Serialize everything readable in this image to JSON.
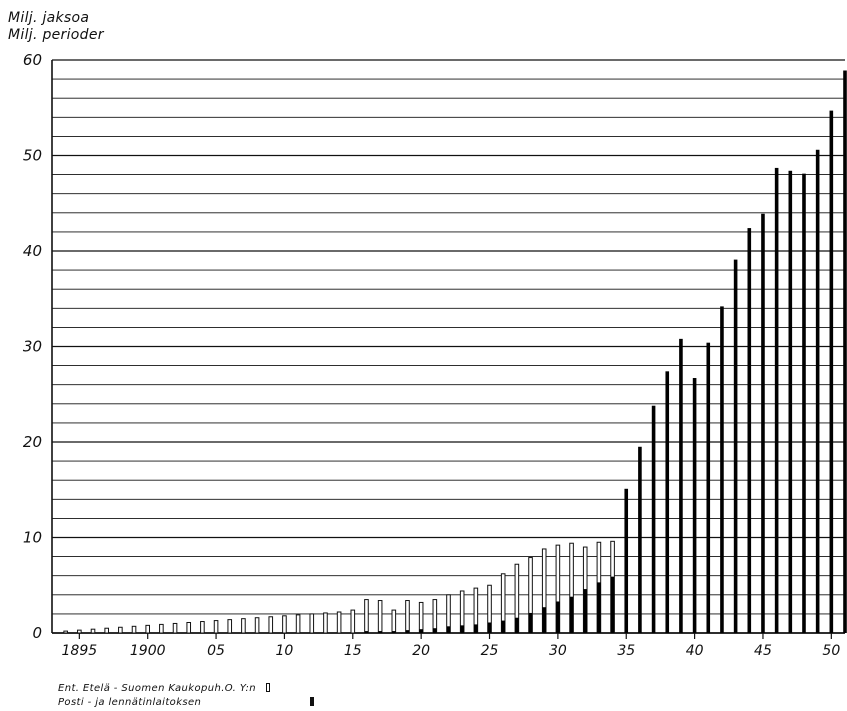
{
  "chart_data": {
    "type": "bar",
    "ylabel_lines": [
      "Milj. jaksoa",
      "Milj. perioder"
    ],
    "ylim": [
      0,
      60
    ],
    "yticks": [
      0,
      10,
      20,
      30,
      40,
      50,
      60
    ],
    "xlim": [
      1893,
      1951
    ],
    "xtick_labels": [
      {
        "year": 1895,
        "label": "1895"
      },
      {
        "year": 1900,
        "label": "1900"
      },
      {
        "year": 1905,
        "label": "05"
      },
      {
        "year": 1910,
        "label": "10"
      },
      {
        "year": 1915,
        "label": "15"
      },
      {
        "year": 1920,
        "label": "20"
      },
      {
        "year": 1925,
        "label": "25"
      },
      {
        "year": 1930,
        "label": "30"
      },
      {
        "year": 1935,
        "label": "35"
      },
      {
        "year": 1940,
        "label": "40"
      },
      {
        "year": 1945,
        "label": "45"
      },
      {
        "year": 1950,
        "label": "50"
      }
    ],
    "years": [
      1894,
      1895,
      1896,
      1897,
      1898,
      1899,
      1900,
      1901,
      1902,
      1903,
      1904,
      1905,
      1906,
      1907,
      1908,
      1909,
      1910,
      1911,
      1912,
      1913,
      1914,
      1915,
      1916,
      1917,
      1918,
      1919,
      1920,
      1921,
      1922,
      1923,
      1924,
      1925,
      1926,
      1927,
      1928,
      1929,
      1930,
      1931,
      1932,
      1933,
      1934,
      1935,
      1936,
      1937,
      1938,
      1939,
      1940,
      1941,
      1942,
      1943,
      1944,
      1945,
      1946,
      1947,
      1948,
      1949,
      1950,
      1951
    ],
    "series": [
      {
        "name": "Ent. Etelä-Suomen Kaukopuh.O. Y:n",
        "fill": "#ffffff",
        "values": [
          0.2,
          0.3,
          0.4,
          0.5,
          0.6,
          0.7,
          0.8,
          0.9,
          1.0,
          1.1,
          1.2,
          1.3,
          1.4,
          1.5,
          1.6,
          1.7,
          1.8,
          1.9,
          2.0,
          2.1,
          2.2,
          2.4,
          3.5,
          3.4,
          2.4,
          3.4,
          3.2,
          3.5,
          4.0,
          4.4,
          4.7,
          5.0,
          6.2,
          7.2,
          7.9,
          8.8,
          9.2,
          9.4,
          9.0,
          9.5,
          9.6,
          null,
          null,
          null,
          null,
          null,
          null,
          null,
          null,
          null,
          null,
          null,
          null,
          null,
          null,
          null,
          null,
          null
        ]
      },
      {
        "name": "Posti- ja lennätinlaitoksen",
        "fill": "#000000",
        "values": [
          null,
          null,
          null,
          null,
          null,
          null,
          null,
          null,
          null,
          null,
          null,
          null,
          null,
          null,
          null,
          null,
          null,
          null,
          null,
          null,
          null,
          null,
          0.2,
          0.2,
          0.2,
          0.3,
          0.4,
          0.5,
          0.7,
          0.8,
          0.9,
          1.1,
          1.3,
          1.6,
          2.1,
          2.7,
          3.3,
          3.8,
          4.6,
          5.3,
          5.9,
          15.1,
          19.5,
          23.8,
          27.4,
          30.8,
          26.7,
          30.4,
          34.2,
          39.1,
          42.4,
          43.9,
          48.7,
          48.4,
          48.1,
          50.6,
          54.7,
          58.9
        ]
      }
    ],
    "legend": [
      {
        "label": "Ent. Etelä - Suomen Kaukopuh.O. Y:n",
        "swatch": "open"
      },
      {
        "label": "Posti - ja lennätinlaitoksen",
        "swatch": "solid"
      }
    ],
    "grid": "horizontal lines every 2 units"
  }
}
